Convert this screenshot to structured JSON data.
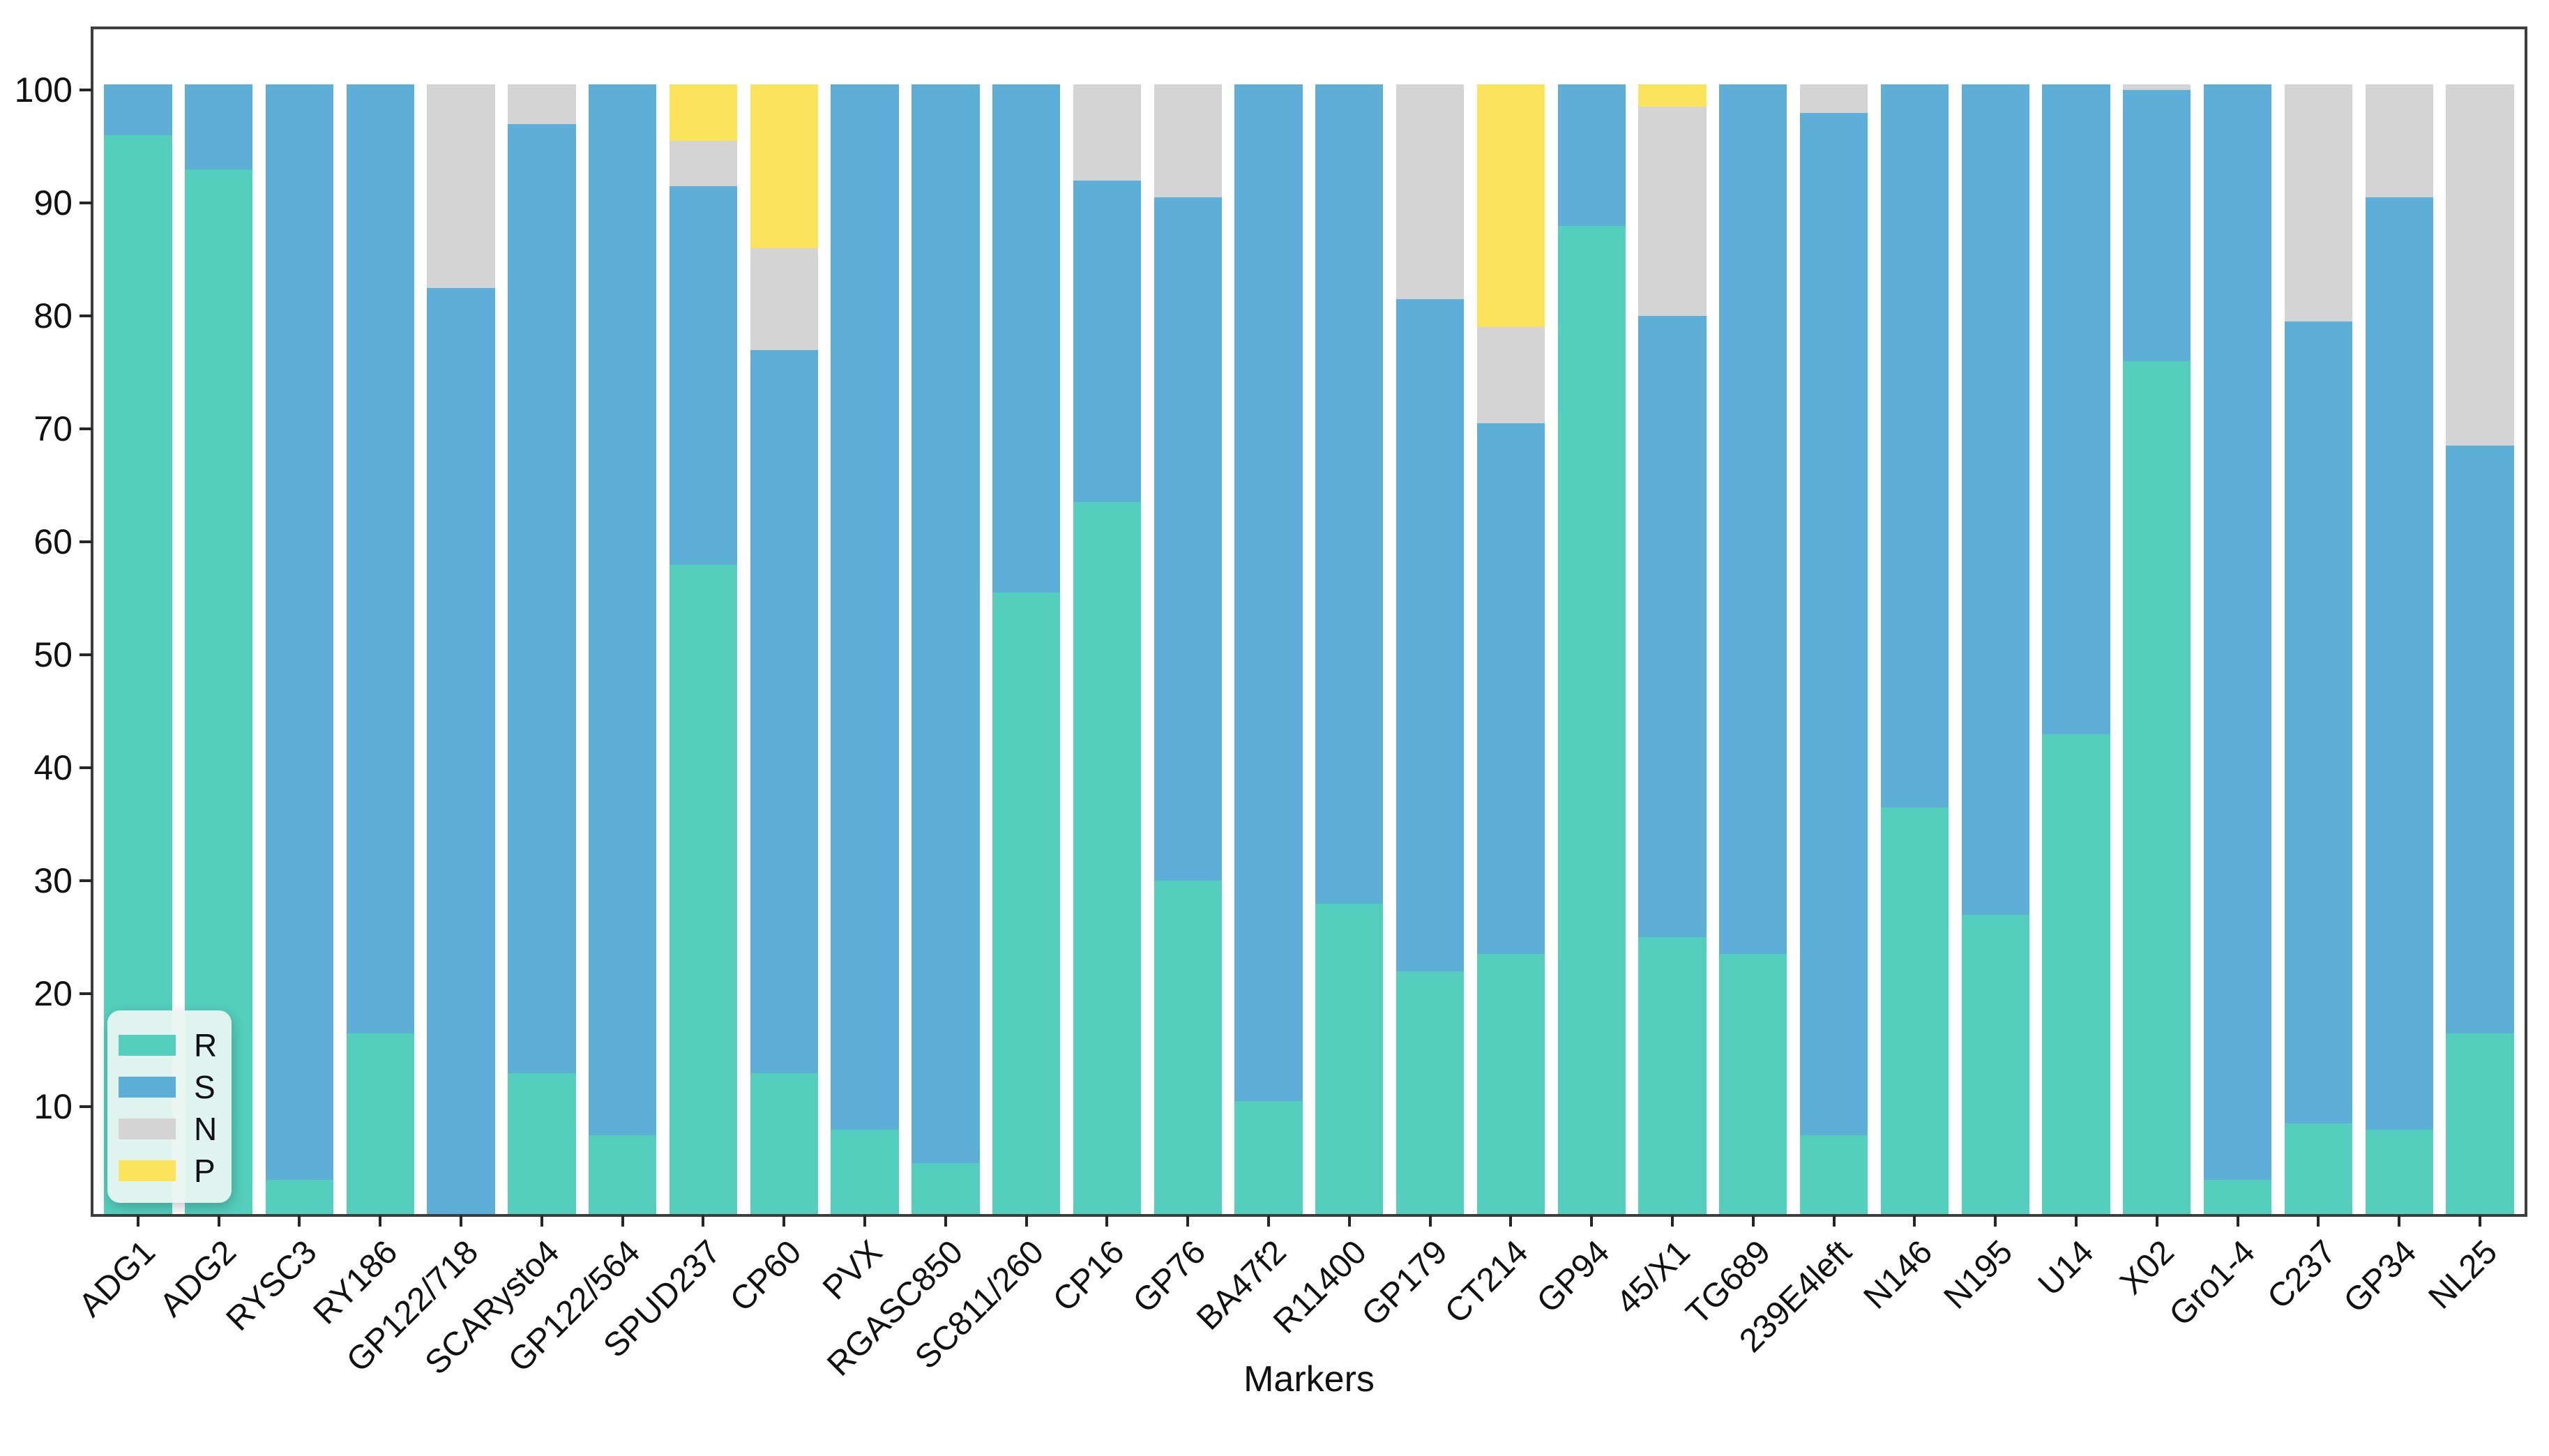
{
  "chart_data": {
    "type": "bar",
    "stacked": true,
    "title": "",
    "xlabel": "Markers",
    "ylabel": "",
    "ylim": [
      0,
      105
    ],
    "yticks": [
      10,
      20,
      30,
      40,
      50,
      60,
      70,
      80,
      90,
      100
    ],
    "grid": false,
    "legend_position": "lower left",
    "categories": [
      "ADG1",
      "ADG2",
      "RYSC3",
      "RY186",
      "GP122/718",
      "SCARysto4",
      "GP122/564",
      "SPUD237",
      "CP60",
      "PVX",
      "RGASC850",
      "SC811/260",
      "CP16",
      "GP76",
      "BA47f2",
      "R11400",
      "GP179",
      "CT214",
      "GP94",
      "45/X1",
      "TG689",
      "239E4left",
      "N146",
      "N195",
      "U14",
      "X02",
      "Gro1-4",
      "C237",
      "GP34",
      "NL25"
    ],
    "series": [
      {
        "name": "R",
        "color": "#54CFBD",
        "values": [
          95.5,
          92.5,
          3,
          16,
          0,
          12.5,
          7,
          57.5,
          12.5,
          7.5,
          4.5,
          55,
          63,
          29.5,
          10,
          27.5,
          21.5,
          23,
          87.5,
          24.5,
          23,
          7,
          36,
          26.5,
          42.5,
          75.5,
          3,
          8,
          7.5,
          16
        ]
      },
      {
        "name": "S",
        "color": "#5DAFD7",
        "values": [
          4.5,
          7.5,
          97,
          84,
          82,
          84,
          93,
          33.5,
          64,
          92.5,
          95.5,
          45,
          28.5,
          60.5,
          90,
          72.5,
          59.5,
          47,
          12.5,
          55,
          77,
          90.5,
          64,
          73.5,
          57.5,
          24,
          97,
          71,
          82.5,
          52
        ]
      },
      {
        "name": "N",
        "color": "#D4D4D4",
        "values": [
          0,
          0,
          0,
          0,
          18,
          3.5,
          0,
          4,
          9,
          0,
          0,
          0,
          8.5,
          10,
          0,
          0,
          19,
          8.5,
          0,
          18.5,
          0,
          2.5,
          0,
          0,
          0,
          0.5,
          0,
          21,
          10,
          32
        ]
      },
      {
        "name": "P",
        "color": "#FBE45C",
        "values": [
          0,
          0,
          0,
          0,
          0,
          0,
          0,
          5,
          14.5,
          0,
          0,
          0,
          0,
          0,
          0,
          0,
          0,
          21.5,
          0,
          2,
          0,
          0,
          0,
          0,
          0,
          0,
          0,
          0,
          0,
          0
        ]
      }
    ]
  },
  "colors": {
    "axis_border": "#3d3d3d",
    "tick": "#262626",
    "background": "#ffffff",
    "legend_background": "#e9f5f2"
  }
}
